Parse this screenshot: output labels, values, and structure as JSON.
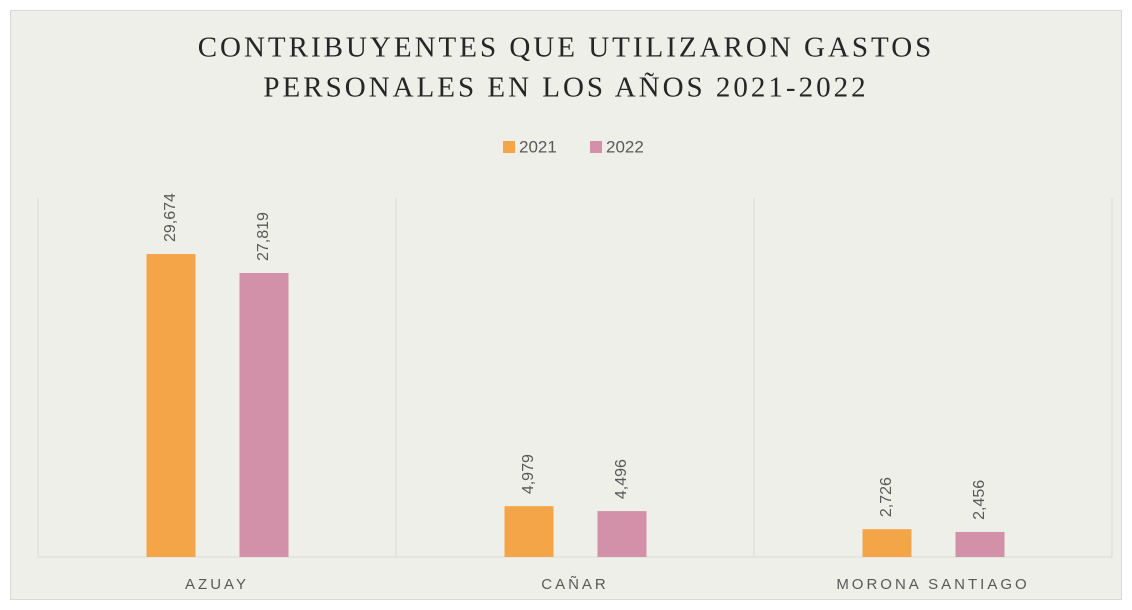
{
  "chart_data": {
    "type": "bar",
    "title": [
      "CONTRIBUYENTES QUE UTILIZARON GASTOS",
      "PERSONALES EN LOS AÑOS 2021-2022"
    ],
    "categories": [
      "AZUAY",
      "CAÑAR",
      "MORONA SANTIAGO"
    ],
    "series": [
      {
        "name": "2021",
        "color": "#f4a547",
        "values": [
          29674,
          4979,
          2726
        ],
        "value_labels": [
          "29,674",
          "4,979",
          "2,726"
        ]
      },
      {
        "name": "2022",
        "color": "#d291a8",
        "values": [
          27819,
          4496,
          2456
        ],
        "value_labels": [
          "27,819",
          "4,496",
          "2,456"
        ]
      }
    ],
    "legend": "top"
  }
}
